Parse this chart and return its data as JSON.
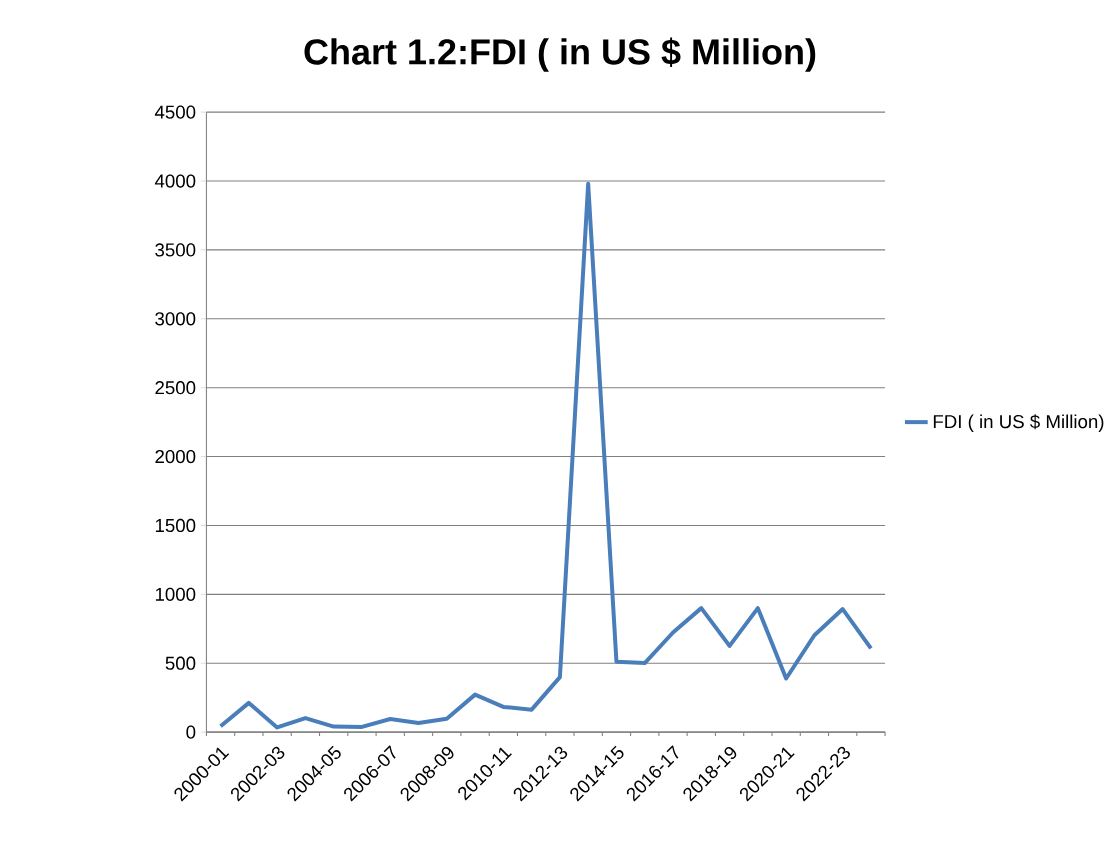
{
  "chart_data": {
    "type": "line",
    "title": "Chart 1.2:FDI ( in US $ Million)",
    "categories": [
      "2000-01",
      null,
      "2002-03",
      null,
      "2004-05",
      null,
      "2006-07",
      null,
      "2008-09",
      null,
      "2010-11",
      null,
      "2012-13",
      null,
      "2014-15",
      null,
      "2016-17",
      null,
      "2018-19",
      null,
      "2020-21",
      null,
      "2022-23",
      null
    ],
    "series": [
      {
        "name": "FDI ( in US $ Million)",
        "color": "#4a7ebb",
        "values": [
          42,
          212,
          34,
          102,
          40,
          38,
          95,
          66,
          97,
          272,
          183,
          163,
          399,
          3980,
          511,
          501,
          723,
          900,
          626,
          900,
          389,
          703,
          893,
          608
        ]
      }
    ],
    "ylim": [
      0,
      4500
    ],
    "yticks": [
      0,
      500,
      1000,
      1500,
      2000,
      2500,
      3000,
      3500,
      4000,
      4500
    ],
    "grid": "y",
    "legend": "right",
    "marker": "none",
    "line_style": "solid"
  }
}
